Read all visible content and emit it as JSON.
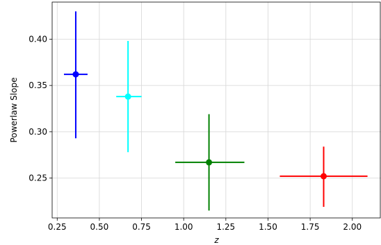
{
  "chart_data": {
    "type": "scatter",
    "title": "",
    "xlabel": "z",
    "ylabel": "Powerlaw Slope",
    "xlim": [
      0.22,
      2.17
    ],
    "ylim": [
      0.207,
      0.44
    ],
    "xticks": [
      0.25,
      0.5,
      0.75,
      1.0,
      1.25,
      1.5,
      1.75,
      2.0
    ],
    "xtick_labels": [
      "0.25",
      "0.50",
      "0.75",
      "1.00",
      "1.25",
      "1.50",
      "1.75",
      "2.00"
    ],
    "yticks": [
      0.25,
      0.3,
      0.35,
      0.4
    ],
    "ytick_labels": [
      "0.25",
      "0.30",
      "0.35",
      "0.40"
    ],
    "grid": true,
    "points": [
      {
        "x": 0.36,
        "y": 0.362,
        "xerr": [
          0.07,
          0.07
        ],
        "yerr": [
          0.069,
          0.068
        ],
        "color": "#0000ff"
      },
      {
        "x": 0.67,
        "y": 0.338,
        "xerr": [
          0.07,
          0.08
        ],
        "yerr": [
          0.06,
          0.06
        ],
        "color": "#00ffff"
      },
      {
        "x": 1.15,
        "y": 0.267,
        "xerr": [
          0.2,
          0.21
        ],
        "yerr": [
          0.052,
          0.052
        ],
        "color": "#008000"
      },
      {
        "x": 1.83,
        "y": 0.252,
        "xerr": [
          0.26,
          0.26
        ],
        "yerr": [
          0.033,
          0.032
        ],
        "color": "#ff0000"
      }
    ]
  }
}
